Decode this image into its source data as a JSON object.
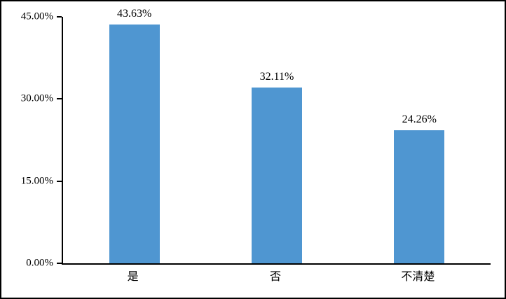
{
  "chart_data": {
    "type": "bar",
    "title": "",
    "xlabel": "",
    "ylabel": "",
    "categories": [
      "是",
      "否",
      "不清楚"
    ],
    "values": [
      43.63,
      32.11,
      24.26
    ],
    "value_labels": [
      "43.63%",
      "32.11%",
      "24.26%"
    ],
    "ylim": [
      0,
      45
    ],
    "yticks": [
      0,
      15,
      30,
      45
    ],
    "ytick_labels": [
      "0.00%",
      "15.00%",
      "30.00%",
      "45.00%"
    ],
    "grid": false,
    "legend": "none",
    "bar_color": "#4f96d1",
    "axis_color": "#000000",
    "frame_border_color": "#000000"
  }
}
